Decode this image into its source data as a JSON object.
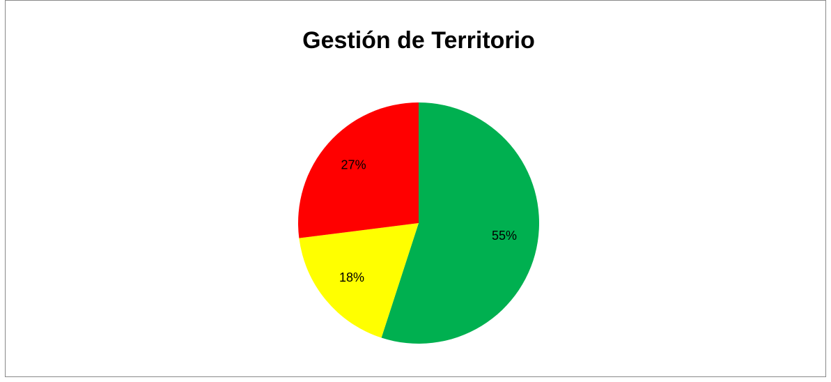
{
  "chart_data": {
    "type": "pie",
    "title": "Gestión de Territorio",
    "values": [
      55,
      18,
      27
    ],
    "value_labels": [
      "55%",
      "18%",
      "27%"
    ],
    "colors": [
      "#00b050",
      "#ffff00",
      "#ff0000"
    ]
  }
}
